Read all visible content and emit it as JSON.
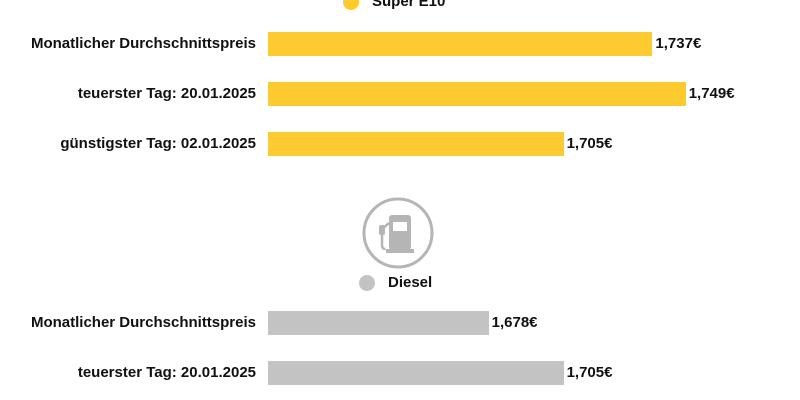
{
  "chart_data": [
    {
      "type": "bar",
      "orientation": "horizontal",
      "legend": "Super E10",
      "color": "#fdcb2f",
      "categories": [
        "Monatlicher Durchschnittspreis",
        "teuerster Tag: 20.01.2025",
        "günstigster Tag: 02.01.2025"
      ],
      "values": [
        1.737,
        1.749,
        1.705
      ],
      "value_labels": [
        "1,737€",
        "1,749€",
        "1,705€"
      ]
    },
    {
      "type": "bar",
      "orientation": "horizontal",
      "legend": "Diesel",
      "color": "#c3c3c3",
      "categories": [
        "Monatlicher Durchschnittspreis",
        "teuerster Tag: 20.01.2025"
      ],
      "values": [
        1.678,
        1.705
      ],
      "value_labels": [
        "1,678€",
        "1,705€"
      ]
    }
  ],
  "icons": {
    "divider": "fuel-pump-icon"
  },
  "colors": {
    "icon": "#b5b5b5"
  }
}
